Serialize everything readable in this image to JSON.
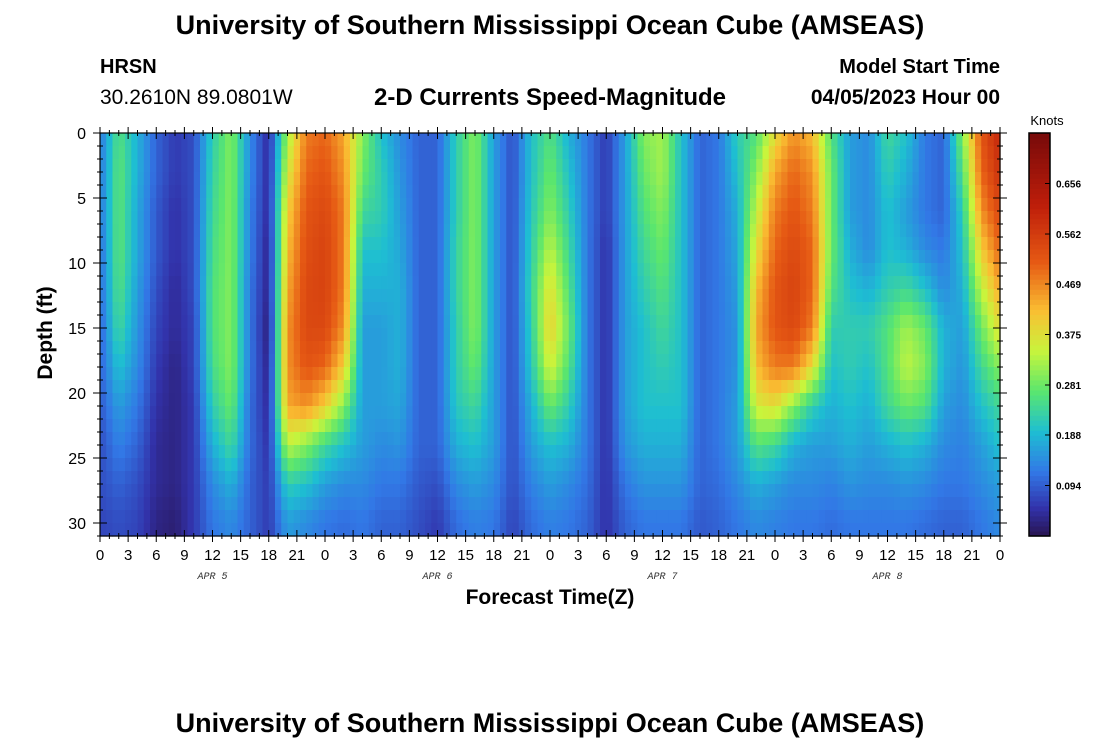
{
  "header": {
    "title": "University of Southern Mississippi Ocean Cube (AMSEAS)",
    "station": "HRSN",
    "coordinates": "30.2610N  89.0801W",
    "subtitle": "2-D Currents Speed-Magnitude",
    "model_start_label": "Model Start Time",
    "model_start_value": "04/05/2023 Hour 00"
  },
  "footer": {
    "title": "University of Southern Mississippi Ocean Cube (AMSEAS)"
  },
  "chart_data": {
    "type": "heatmap",
    "title": "2-D Currents Speed-Magnitude",
    "xlabel": "Forecast Time(Z)",
    "ylabel": "Depth (ft)",
    "colorbar_label": "Knots",
    "xlim": [
      0,
      96
    ],
    "ylim": [
      0,
      31
    ],
    "x_tick_labels": [
      "0",
      "3",
      "6",
      "9",
      "12",
      "15",
      "18",
      "21",
      "0",
      "3",
      "6",
      "9",
      "12",
      "15",
      "18",
      "21",
      "0",
      "3",
      "6",
      "9",
      "12",
      "15",
      "18",
      "21",
      "0",
      "3",
      "6",
      "9",
      "12",
      "15",
      "18",
      "21",
      "0"
    ],
    "y_ticks": [
      0,
      5,
      10,
      15,
      20,
      25,
      30
    ],
    "date_labels": [
      {
        "label": "APR 5",
        "hour": 12
      },
      {
        "label": "APR 6",
        "hour": 36
      },
      {
        "label": "APR 7",
        "hour": 60
      },
      {
        "label": "APR 8",
        "hour": 84
      }
    ],
    "colorbar_ticks": [
      "0.656",
      "0.562",
      "0.469",
      "0.375",
      "0.281",
      "0.188",
      "0.094"
    ],
    "colorbar_range": [
      0.0,
      0.75
    ],
    "depth_levels": [
      0,
      3,
      6,
      9,
      12,
      15,
      18,
      21,
      24,
      27,
      30
    ],
    "hours": [
      0,
      2,
      4,
      6,
      8,
      10,
      12,
      14,
      16,
      18,
      20,
      22,
      24,
      26,
      28,
      30,
      32,
      34,
      36,
      38,
      40,
      42,
      44,
      46,
      48,
      50,
      52,
      54,
      56,
      58,
      60,
      62,
      64,
      66,
      68,
      70,
      72,
      74,
      76,
      78,
      80,
      82,
      84,
      86,
      88,
      90,
      92,
      94,
      96
    ],
    "values": [
      [
        0.12,
        0.26,
        0.18,
        0.1,
        0.06,
        0.08,
        0.22,
        0.3,
        0.14,
        0.04,
        0.32,
        0.48,
        0.5,
        0.44,
        0.3,
        0.2,
        0.14,
        0.1,
        0.1,
        0.22,
        0.3,
        0.16,
        0.08,
        0.2,
        0.26,
        0.18,
        0.12,
        0.06,
        0.16,
        0.3,
        0.32,
        0.2,
        0.1,
        0.12,
        0.22,
        0.26,
        0.38,
        0.46,
        0.42,
        0.26,
        0.16,
        0.14,
        0.24,
        0.2,
        0.12,
        0.1,
        0.3,
        0.52,
        0.6
      ],
      [
        0.12,
        0.27,
        0.18,
        0.1,
        0.06,
        0.08,
        0.23,
        0.3,
        0.14,
        0.04,
        0.36,
        0.5,
        0.52,
        0.46,
        0.28,
        0.22,
        0.15,
        0.1,
        0.1,
        0.22,
        0.3,
        0.16,
        0.08,
        0.2,
        0.28,
        0.2,
        0.12,
        0.06,
        0.16,
        0.28,
        0.32,
        0.2,
        0.1,
        0.12,
        0.2,
        0.3,
        0.44,
        0.5,
        0.46,
        0.28,
        0.16,
        0.14,
        0.22,
        0.18,
        0.12,
        0.1,
        0.26,
        0.5,
        0.58
      ],
      [
        0.12,
        0.27,
        0.17,
        0.09,
        0.05,
        0.08,
        0.24,
        0.3,
        0.13,
        0.04,
        0.4,
        0.52,
        0.54,
        0.48,
        0.24,
        0.22,
        0.16,
        0.1,
        0.1,
        0.22,
        0.3,
        0.16,
        0.08,
        0.21,
        0.3,
        0.22,
        0.12,
        0.06,
        0.16,
        0.26,
        0.3,
        0.2,
        0.1,
        0.12,
        0.18,
        0.34,
        0.48,
        0.52,
        0.48,
        0.28,
        0.16,
        0.14,
        0.2,
        0.16,
        0.12,
        0.1,
        0.22,
        0.46,
        0.54
      ],
      [
        0.11,
        0.27,
        0.17,
        0.09,
        0.05,
        0.08,
        0.25,
        0.3,
        0.13,
        0.03,
        0.42,
        0.53,
        0.55,
        0.48,
        0.2,
        0.2,
        0.17,
        0.1,
        0.1,
        0.23,
        0.3,
        0.16,
        0.08,
        0.22,
        0.34,
        0.24,
        0.12,
        0.05,
        0.16,
        0.24,
        0.28,
        0.2,
        0.1,
        0.12,
        0.17,
        0.38,
        0.5,
        0.54,
        0.5,
        0.28,
        0.18,
        0.14,
        0.2,
        0.18,
        0.14,
        0.12,
        0.2,
        0.4,
        0.5
      ],
      [
        0.11,
        0.26,
        0.16,
        0.08,
        0.04,
        0.08,
        0.26,
        0.3,
        0.12,
        0.03,
        0.44,
        0.54,
        0.55,
        0.48,
        0.18,
        0.18,
        0.18,
        0.1,
        0.1,
        0.23,
        0.3,
        0.16,
        0.08,
        0.23,
        0.38,
        0.26,
        0.12,
        0.05,
        0.16,
        0.22,
        0.26,
        0.2,
        0.1,
        0.12,
        0.16,
        0.42,
        0.52,
        0.55,
        0.5,
        0.26,
        0.2,
        0.18,
        0.22,
        0.24,
        0.2,
        0.14,
        0.18,
        0.34,
        0.44
      ],
      [
        0.1,
        0.24,
        0.15,
        0.07,
        0.04,
        0.07,
        0.26,
        0.3,
        0.12,
        0.02,
        0.46,
        0.54,
        0.54,
        0.46,
        0.16,
        0.16,
        0.18,
        0.1,
        0.1,
        0.22,
        0.3,
        0.16,
        0.08,
        0.22,
        0.4,
        0.28,
        0.12,
        0.05,
        0.16,
        0.2,
        0.24,
        0.2,
        0.1,
        0.12,
        0.15,
        0.44,
        0.52,
        0.54,
        0.48,
        0.22,
        0.22,
        0.22,
        0.26,
        0.32,
        0.28,
        0.18,
        0.16,
        0.28,
        0.38
      ],
      [
        0.1,
        0.2,
        0.14,
        0.06,
        0.03,
        0.07,
        0.25,
        0.3,
        0.12,
        0.03,
        0.46,
        0.52,
        0.5,
        0.4,
        0.16,
        0.16,
        0.18,
        0.1,
        0.1,
        0.22,
        0.28,
        0.16,
        0.08,
        0.21,
        0.36,
        0.26,
        0.12,
        0.05,
        0.16,
        0.2,
        0.22,
        0.2,
        0.1,
        0.12,
        0.15,
        0.42,
        0.48,
        0.48,
        0.38,
        0.2,
        0.22,
        0.2,
        0.26,
        0.34,
        0.3,
        0.18,
        0.15,
        0.24,
        0.3
      ],
      [
        0.09,
        0.16,
        0.12,
        0.05,
        0.03,
        0.06,
        0.22,
        0.28,
        0.11,
        0.04,
        0.44,
        0.46,
        0.4,
        0.3,
        0.16,
        0.16,
        0.17,
        0.1,
        0.1,
        0.21,
        0.24,
        0.16,
        0.08,
        0.18,
        0.28,
        0.22,
        0.12,
        0.05,
        0.16,
        0.2,
        0.2,
        0.2,
        0.1,
        0.12,
        0.16,
        0.36,
        0.38,
        0.3,
        0.22,
        0.18,
        0.2,
        0.18,
        0.24,
        0.28,
        0.26,
        0.16,
        0.14,
        0.2,
        0.24
      ],
      [
        0.08,
        0.13,
        0.1,
        0.04,
        0.03,
        0.06,
        0.18,
        0.24,
        0.11,
        0.05,
        0.34,
        0.3,
        0.24,
        0.2,
        0.16,
        0.14,
        0.15,
        0.1,
        0.1,
        0.18,
        0.2,
        0.16,
        0.08,
        0.16,
        0.2,
        0.18,
        0.12,
        0.05,
        0.15,
        0.18,
        0.18,
        0.18,
        0.1,
        0.12,
        0.16,
        0.26,
        0.24,
        0.18,
        0.16,
        0.16,
        0.18,
        0.16,
        0.18,
        0.2,
        0.18,
        0.14,
        0.13,
        0.16,
        0.2
      ],
      [
        0.08,
        0.1,
        0.08,
        0.04,
        0.03,
        0.06,
        0.14,
        0.18,
        0.1,
        0.06,
        0.22,
        0.2,
        0.16,
        0.14,
        0.14,
        0.12,
        0.12,
        0.09,
        0.08,
        0.14,
        0.16,
        0.14,
        0.08,
        0.13,
        0.16,
        0.14,
        0.11,
        0.05,
        0.12,
        0.15,
        0.15,
        0.15,
        0.1,
        0.11,
        0.14,
        0.18,
        0.16,
        0.14,
        0.14,
        0.13,
        0.15,
        0.14,
        0.14,
        0.15,
        0.14,
        0.12,
        0.12,
        0.14,
        0.16
      ],
      [
        0.07,
        0.08,
        0.07,
        0.03,
        0.02,
        0.06,
        0.12,
        0.14,
        0.1,
        0.06,
        0.16,
        0.14,
        0.12,
        0.11,
        0.12,
        0.1,
        0.1,
        0.08,
        0.06,
        0.11,
        0.13,
        0.12,
        0.07,
        0.11,
        0.13,
        0.12,
        0.1,
        0.05,
        0.1,
        0.12,
        0.12,
        0.12,
        0.09,
        0.1,
        0.12,
        0.14,
        0.13,
        0.12,
        0.12,
        0.11,
        0.12,
        0.12,
        0.12,
        0.12,
        0.11,
        0.1,
        0.1,
        0.12,
        0.14
      ]
    ]
  }
}
